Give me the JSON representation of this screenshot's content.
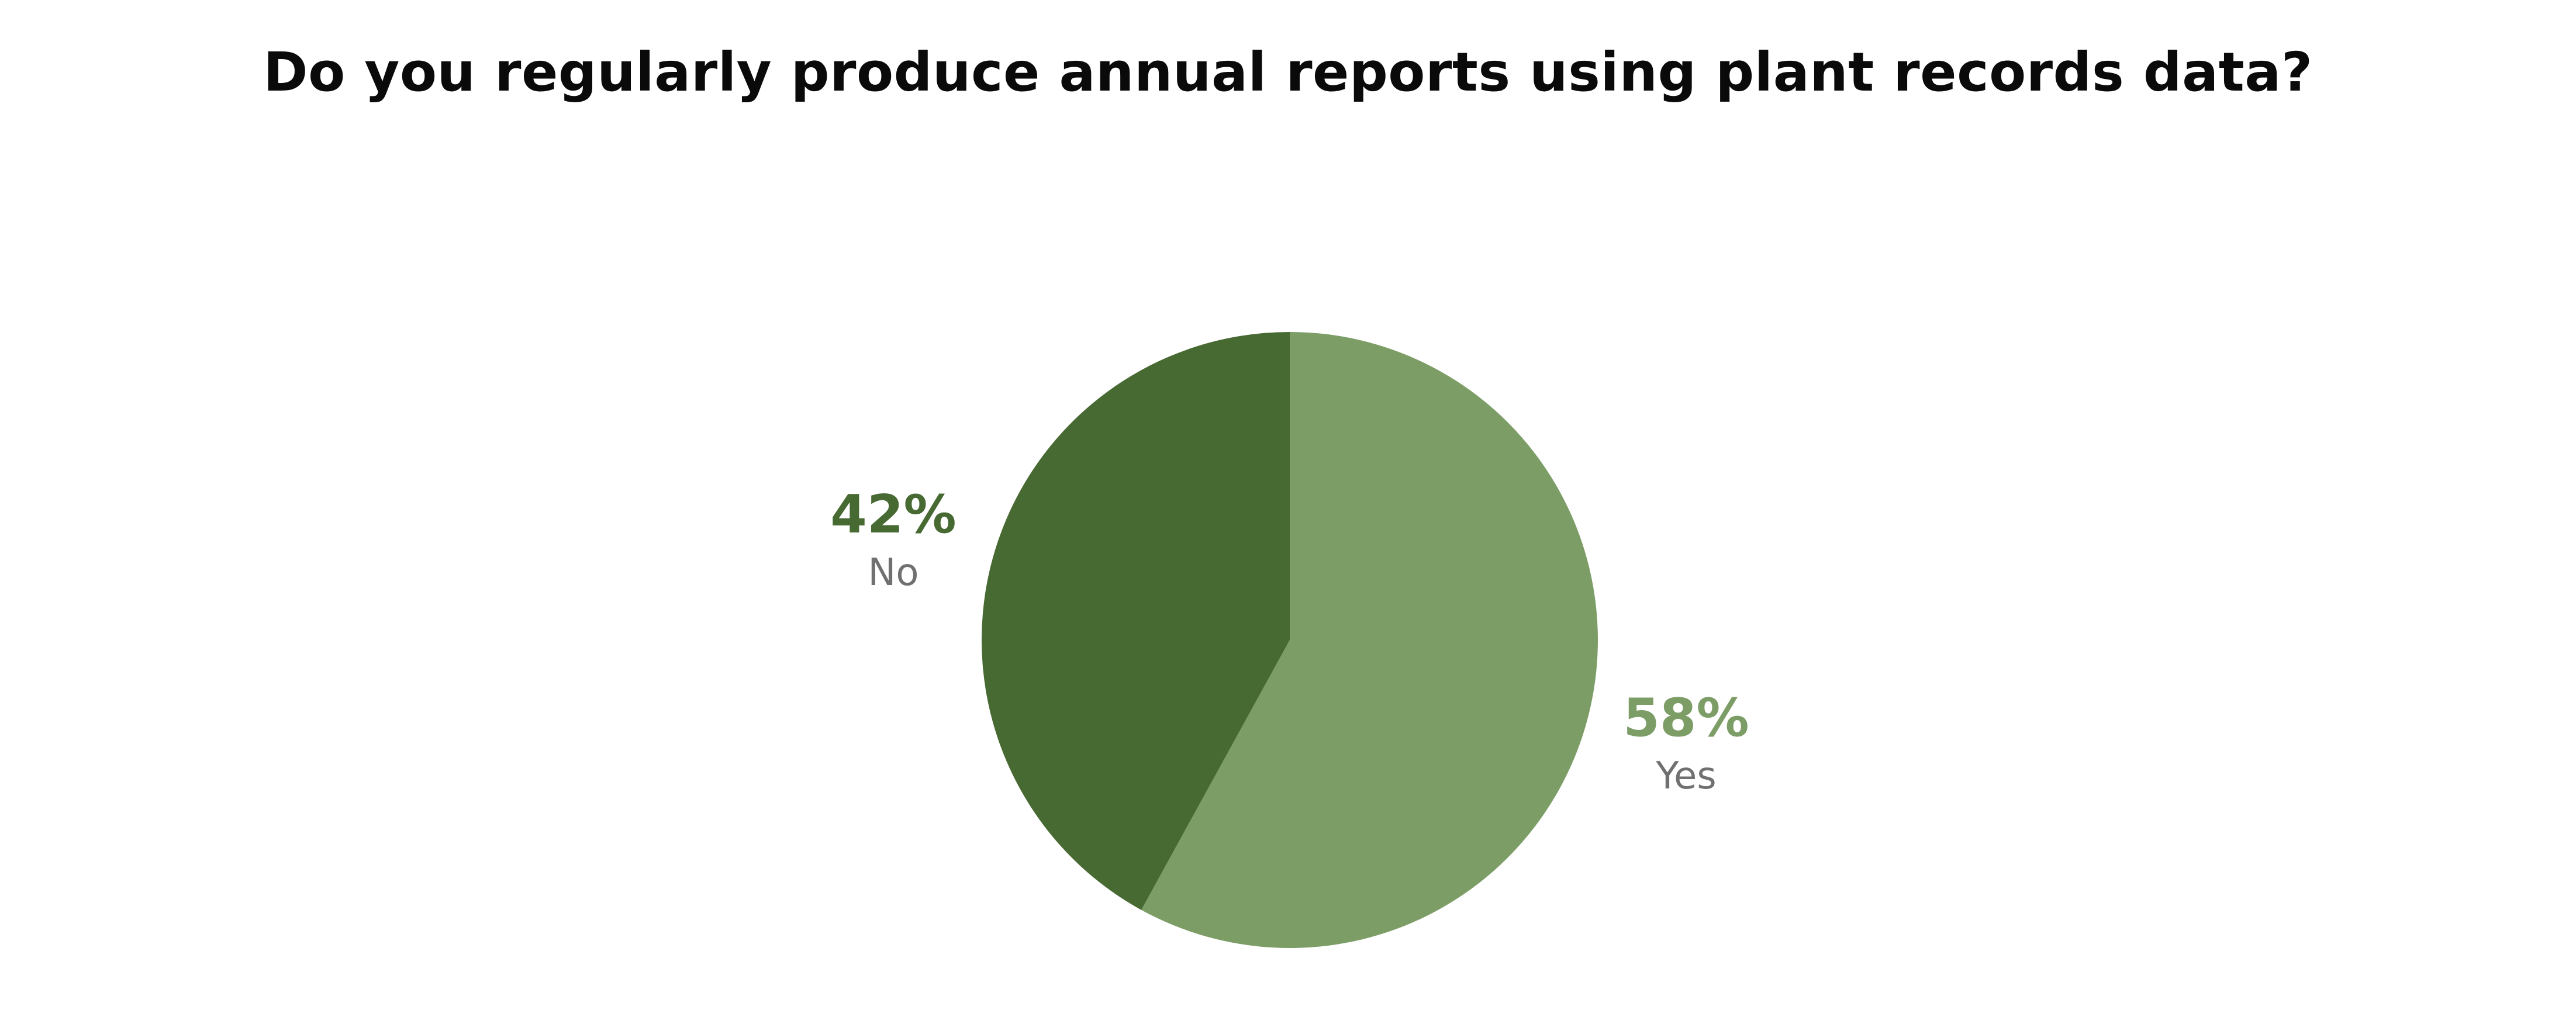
{
  "chart_data": {
    "type": "pie",
    "title": "Do you regularly produce annual reports using plant records data?",
    "slices": [
      {
        "label": "Yes",
        "value": 58,
        "display": "58%",
        "color": "#7d9d67"
      },
      {
        "label": "No",
        "value": 42,
        "display": "42%",
        "color": "#476932"
      }
    ],
    "start_angle_deg": 0,
    "direction": "clockwise",
    "label_color": "#707070"
  }
}
